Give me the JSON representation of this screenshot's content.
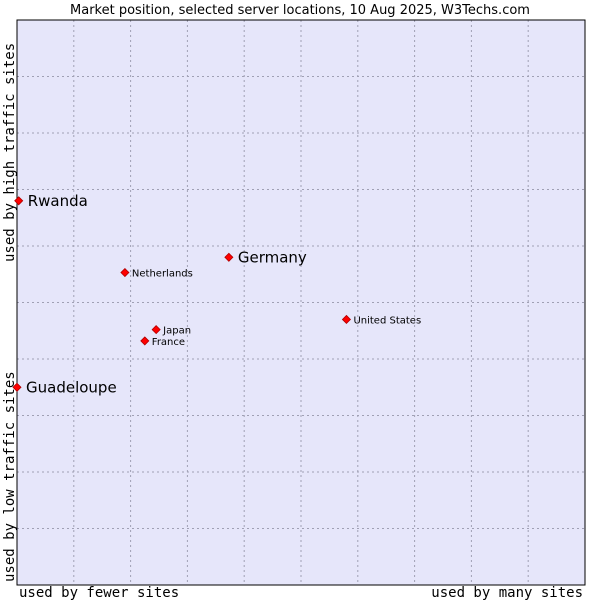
{
  "colors": {
    "plot_background": "#e6e6fa",
    "grid": "#a0a0b4",
    "border": "#000000",
    "point": "#ff0000"
  },
  "chart_data": {
    "type": "scatter",
    "title": "Market position, selected server locations, 10 Aug 2025, W3Techs.com",
    "x_axis": {
      "low_label": "used by fewer sites",
      "high_label": "used by many sites",
      "range": [
        0,
        10
      ]
    },
    "y_axis": {
      "low_label": "used by low traffic sites",
      "high_label": "used by high traffic sites",
      "range": [
        0,
        10
      ]
    },
    "grid": true,
    "points": [
      {
        "name": "Rwanda",
        "x": 0.03,
        "y": 6.8,
        "label_size": "large"
      },
      {
        "name": "Germany",
        "x": 3.73,
        "y": 5.8,
        "label_size": "large"
      },
      {
        "name": "Netherlands",
        "x": 1.9,
        "y": 5.53,
        "label_size": "small"
      },
      {
        "name": "United States",
        "x": 5.8,
        "y": 4.7,
        "label_size": "small"
      },
      {
        "name": "Japan",
        "x": 2.45,
        "y": 4.52,
        "label_size": "small"
      },
      {
        "name": "France",
        "x": 2.25,
        "y": 4.32,
        "label_size": "small"
      },
      {
        "name": "Guadeloupe",
        "x": 0.0,
        "y": 3.5,
        "label_size": "large"
      }
    ]
  }
}
